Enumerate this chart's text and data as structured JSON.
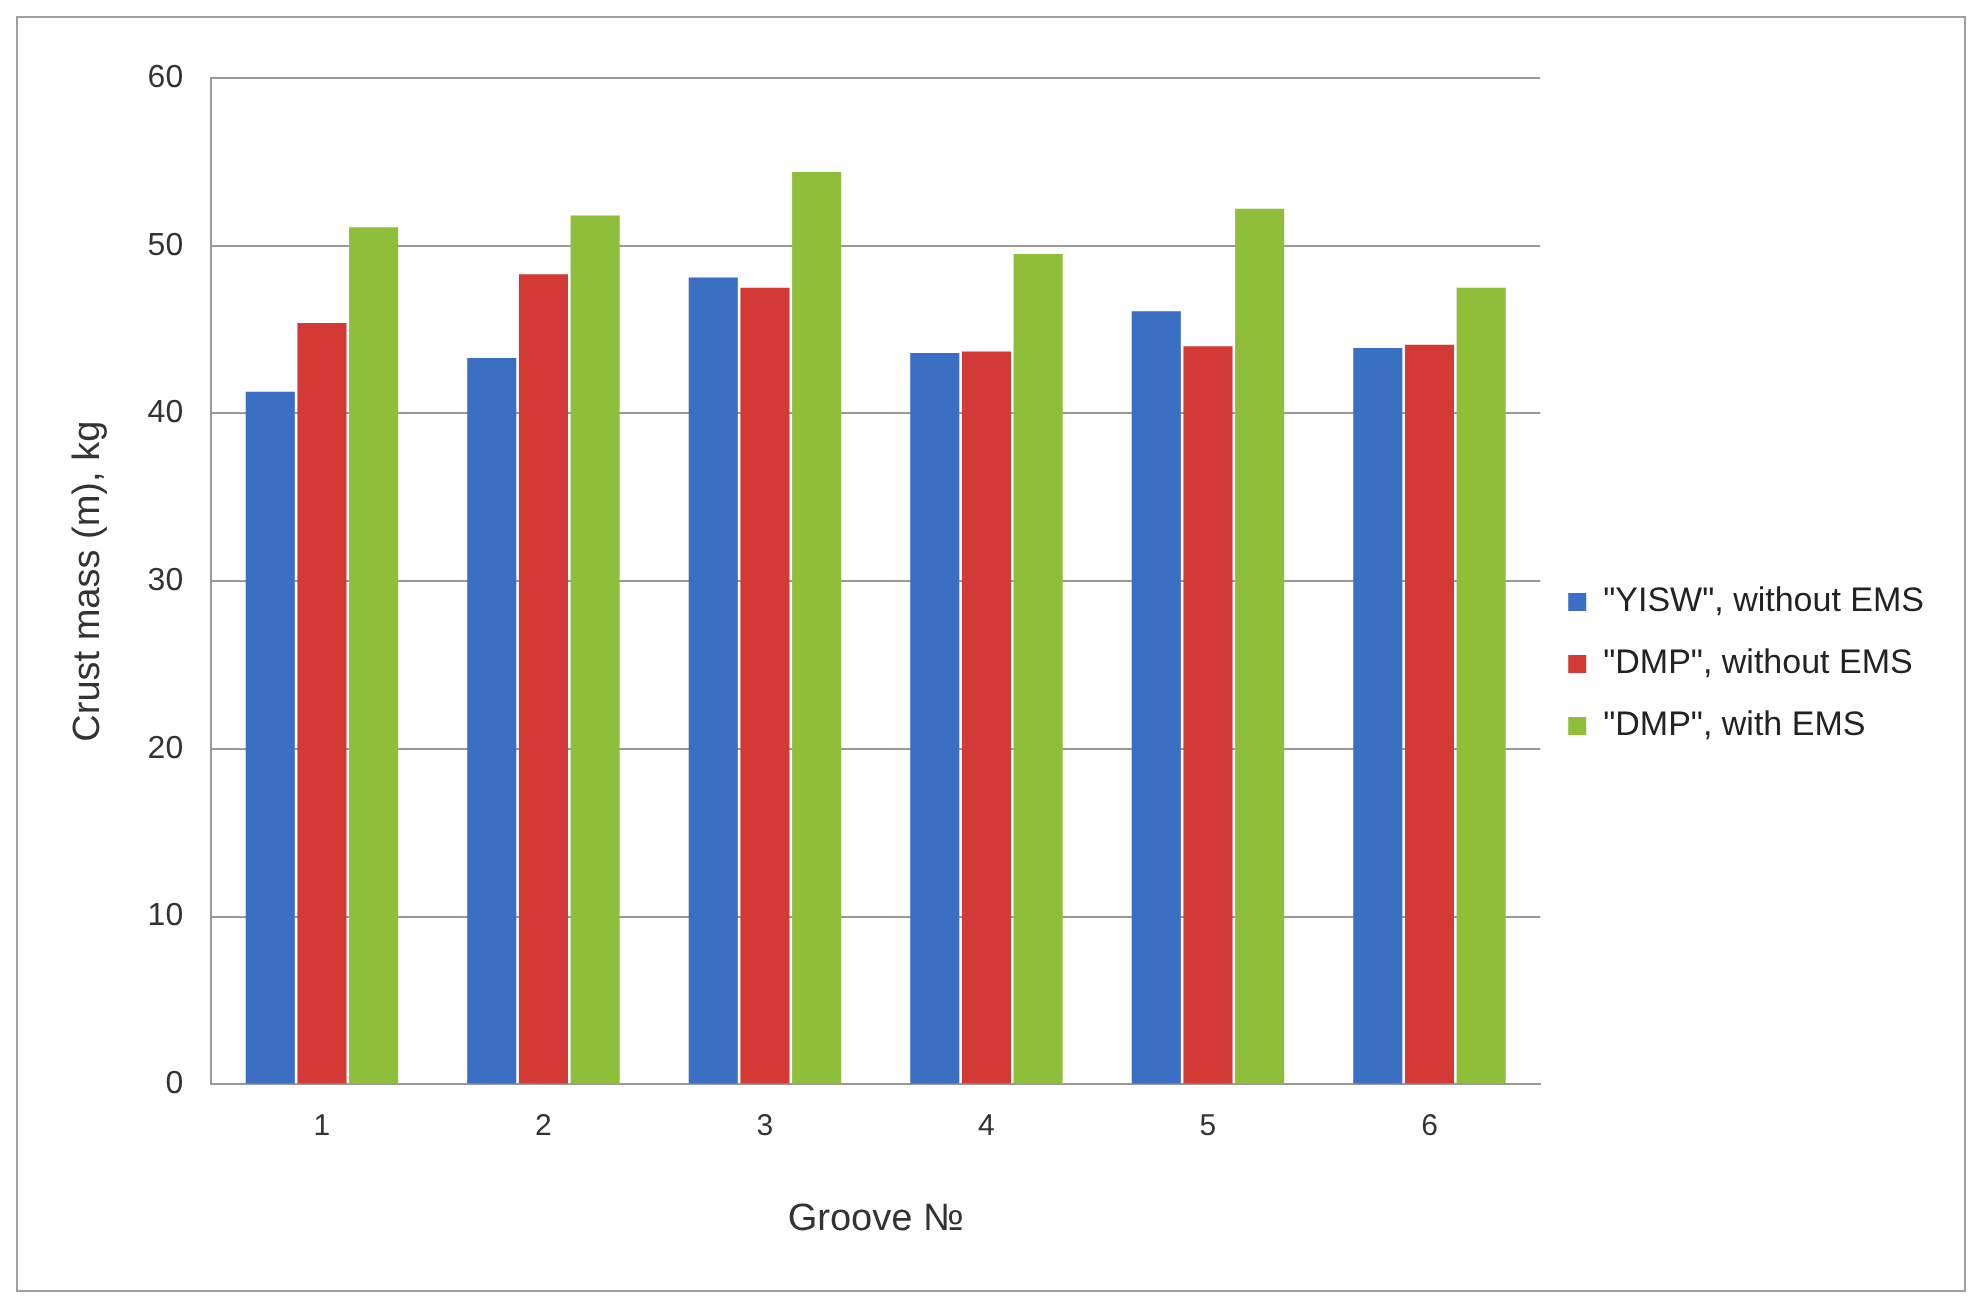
{
  "chart_data": {
    "type": "bar",
    "xlabel": "Groove №",
    "ylabel": "Crust mass (m), kg",
    "categories": [
      "1",
      "2",
      "3",
      "4",
      "5",
      "6"
    ],
    "series": [
      {
        "name": "\"YISW\", without EMS",
        "color": "#3a6fc4",
        "values": [
          41.3,
          43.3,
          48.1,
          43.6,
          46.1,
          43.9
        ]
      },
      {
        "name": "\"DMP\", without EMS",
        "color": "#d33a35",
        "values": [
          45.4,
          48.3,
          47.5,
          43.7,
          44.0,
          44.1
        ]
      },
      {
        "name": "\"DMP\", with EMS",
        "color": "#8fbf3a",
        "values": [
          51.1,
          51.8,
          54.4,
          49.5,
          52.2,
          47.5
        ]
      }
    ],
    "ylim": [
      0,
      60
    ],
    "yticks": [
      0,
      10,
      20,
      30,
      40,
      50,
      60
    ],
    "grid": "y",
    "legend": "right"
  }
}
